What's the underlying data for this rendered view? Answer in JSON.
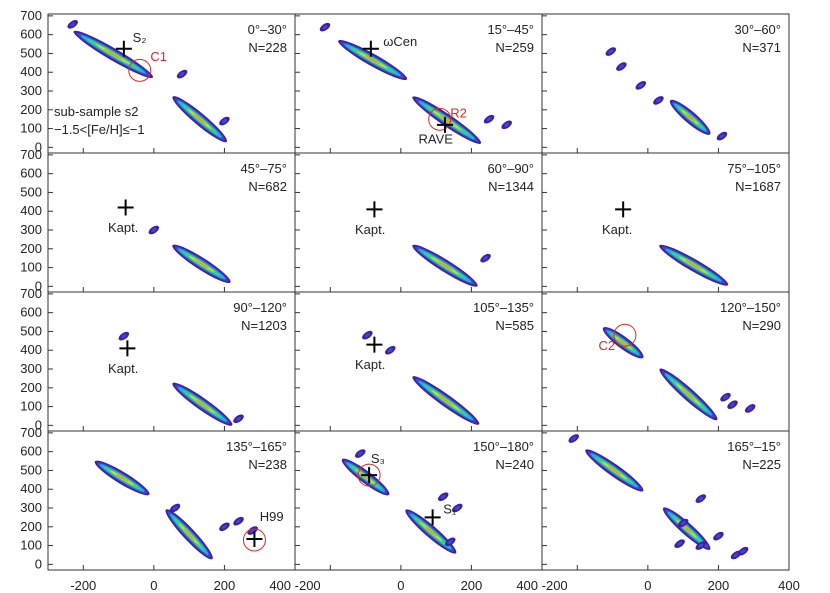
{
  "chart_data": {
    "type": "contour",
    "grid": {
      "rows": 4,
      "cols": 3
    },
    "xlim": [
      -300,
      400
    ],
    "ylim": [
      -30,
      710
    ],
    "x_ticks": [
      -200,
      0,
      200,
      400
    ],
    "y_ticks": [
      0,
      100,
      200,
      300,
      400,
      500,
      600,
      700
    ],
    "bottom_tick_labels": [
      "-200",
      "0",
      "200",
      "400 -200",
      "0",
      "200",
      "400 -200",
      "0",
      "200",
      "400"
    ],
    "y_axis_label_visible": false,
    "colors": {
      "outer": "#4b1a9c",
      "c2": "#2a4fd6",
      "c3": "#1fb4d3",
      "c4": "#3fd27a",
      "c5": "#d7d924",
      "c6": "#ee8a1e",
      "marker_red": "#e0261d",
      "frame": "#333333"
    },
    "panels": [
      {
        "range": "0°–30°",
        "n": "N=228",
        "ridges": [
          [
            -220,
            610,
            -10,
            380
          ],
          [
            60,
            260,
            200,
            40
          ]
        ],
        "blobs": [
          [
            -230,
            655
          ],
          [
            80,
            390
          ],
          [
            200,
            140
          ]
        ],
        "crosses": [
          {
            "x": -85,
            "y": 525,
            "label": "S₂",
            "lx": -60,
            "ly": 560
          }
        ],
        "circles": [
          {
            "x": -40,
            "y": 410,
            "label": "C1",
            "lx": -10,
            "ly": 460
          }
        ],
        "notes": [
          "sub-sample s2",
          "−1.5<[Fe/H]≤−1"
        ]
      },
      {
        "range": "15°–45°",
        "n": "N=259",
        "ridges": [
          [
            -170,
            560,
            10,
            370
          ],
          [
            40,
            260,
            220,
            30
          ]
        ],
        "blobs": [
          [
            -215,
            640
          ],
          [
            250,
            150
          ],
          [
            300,
            120
          ]
        ],
        "crosses": [
          {
            "x": -85,
            "y": 525,
            "label": "ωCen",
            "lx": -50,
            "ly": 540
          },
          {
            "x": 125,
            "y": 120,
            "label": "RAVE",
            "lx": 50,
            "ly": 20
          }
        ],
        "circles": [
          {
            "x": 110,
            "y": 150,
            "label": "R2",
            "lx": 140,
            "ly": 160
          }
        ],
        "notes": []
      },
      {
        "range": "30°–60°",
        "n": "N=371",
        "ridges": [
          [
            70,
            240,
            170,
            80
          ]
        ],
        "blobs": [
          [
            -105,
            510
          ],
          [
            -75,
            430
          ],
          [
            -20,
            330
          ],
          [
            30,
            250
          ],
          [
            210,
            60
          ]
        ],
        "crosses": [],
        "circles": [],
        "notes": []
      },
      {
        "range": "45°–75°",
        "n": "N=682",
        "ridges": [
          [
            60,
            210,
            210,
            30
          ]
        ],
        "blobs": [
          [
            0,
            300
          ]
        ],
        "crosses": [
          {
            "x": -80,
            "y": 420,
            "label": "Kapt.",
            "lx": -130,
            "ly": 290
          }
        ],
        "circles": [],
        "notes": []
      },
      {
        "range": "60°–90°",
        "n": "N=1344",
        "ridges": [
          [
            40,
            210,
            210,
            10
          ]
        ],
        "blobs": [
          [
            240,
            150
          ]
        ],
        "crosses": [
          {
            "x": -75,
            "y": 410,
            "label": "Kapt.",
            "lx": -130,
            "ly": 280
          }
        ],
        "circles": [],
        "notes": []
      },
      {
        "range": "75°–105°",
        "n": "N=1687",
        "ridges": [
          [
            40,
            210,
            220,
            15
          ]
        ],
        "blobs": [],
        "crosses": [
          {
            "x": -70,
            "y": 410,
            "label": "Kapt.",
            "lx": -130,
            "ly": 280
          }
        ],
        "circles": [],
        "notes": []
      },
      {
        "range": "90°–120°",
        "n": "N=1203",
        "ridges": [
          [
            60,
            215,
            215,
            10
          ]
        ],
        "blobs": [
          [
            -85,
            475
          ],
          [
            240,
            35
          ]
        ],
        "crosses": [
          {
            "x": -75,
            "y": 410,
            "label": "Kapt.",
            "lx": -130,
            "ly": 280
          }
        ],
        "circles": [],
        "notes": []
      },
      {
        "range": "105°–135°",
        "n": "N=585",
        "ridges": [
          [
            40,
            250,
            215,
            15
          ]
        ],
        "blobs": [
          [
            -95,
            480
          ],
          [
            -30,
            400
          ]
        ],
        "crosses": [
          {
            "x": -75,
            "y": 430,
            "label": "Kapt.",
            "lx": -130,
            "ly": 300
          }
        ],
        "circles": [],
        "notes": []
      },
      {
        "range": "120°–150°",
        "n": "N=290",
        "ridges": [
          [
            -120,
            510,
            -20,
            370
          ],
          [
            40,
            290,
            190,
            40
          ]
        ],
        "blobs": [
          [
            240,
            110
          ],
          [
            290,
            90
          ],
          [
            220,
            150
          ]
        ],
        "crosses": [],
        "circles": [
          {
            "x": -65,
            "y": 480,
            "label": "C2",
            "lx": -140,
            "ly": 400
          }
        ],
        "notes": []
      },
      {
        "range": "135°–165°",
        "n": "N=238",
        "ridges": [
          [
            -160,
            540,
            -20,
            380
          ],
          [
            40,
            280,
            160,
            40
          ]
        ],
        "blobs": [
          [
            60,
            300
          ],
          [
            200,
            200
          ],
          [
            240,
            230
          ],
          [
            280,
            180
          ]
        ],
        "crosses": [
          {
            "x": 285,
            "y": 135,
            "label": "H99",
            "lx": 300,
            "ly": 230
          }
        ],
        "circles": [
          {
            "x": 285,
            "y": 130,
            "label": "",
            "lx": 0,
            "ly": 0
          }
        ],
        "notes": []
      },
      {
        "range": "150°–180°",
        "n": "N=240",
        "ridges": [
          [
            -160,
            550,
            -40,
            380
          ],
          [
            20,
            280,
            150,
            70
          ]
        ],
        "blobs": [
          [
            -115,
            590
          ],
          [
            120,
            360
          ],
          [
            160,
            300
          ],
          [
            140,
            120
          ]
        ],
        "crosses": [
          {
            "x": -90,
            "y": 475,
            "label": "S₃",
            "lx": -85,
            "ly": 540
          },
          {
            "x": 90,
            "y": 250,
            "label": "S₁",
            "lx": 120,
            "ly": 270
          }
        ],
        "circles": [
          {
            "x": -90,
            "y": 475,
            "label": "",
            "lx": 0,
            "ly": 0
          }
        ],
        "notes": []
      },
      {
        "range": "165°–15°",
        "n": "N=225",
        "ridges": [
          [
            -170,
            600,
            -20,
            400
          ],
          [
            50,
            290,
            170,
            90
          ]
        ],
        "blobs": [
          [
            -210,
            670
          ],
          [
            150,
            350
          ],
          [
            100,
            220
          ],
          [
            200,
            150
          ],
          [
            150,
            100
          ],
          [
            250,
            50
          ],
          [
            270,
            70
          ],
          [
            90,
            110
          ]
        ],
        "crosses": [],
        "circles": [],
        "notes": []
      }
    ]
  }
}
